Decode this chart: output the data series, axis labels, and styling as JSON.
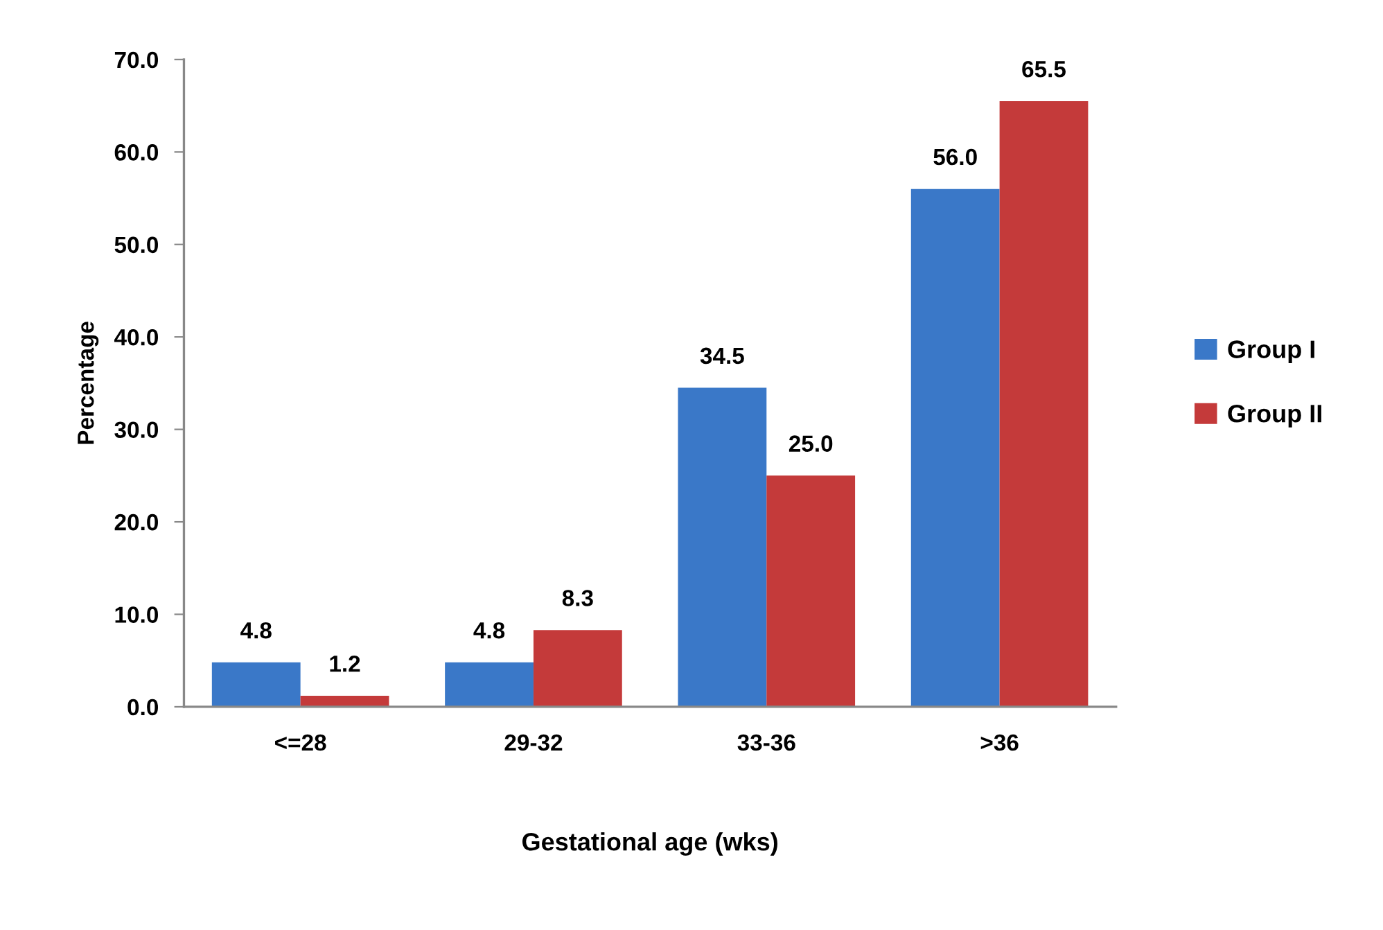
{
  "chart_data": {
    "type": "bar",
    "xlabel": "Gestational age (wks)",
    "ylabel": "Percentage",
    "categories": [
      "<=28",
      "29-32",
      "33-36",
      ">36"
    ],
    "series": [
      {
        "name": "Group I",
        "color": "#3a78c8",
        "values": [
          4.8,
          4.8,
          34.5,
          56.0
        ],
        "value_labels": [
          "4.8",
          "4.8",
          "34.5",
          "56.0"
        ]
      },
      {
        "name": "Group II",
        "color": "#c43a3a",
        "values": [
          1.2,
          8.3,
          25.0,
          65.5
        ],
        "value_labels": [
          "1.2",
          "8.3",
          "25.0",
          "65.5"
        ]
      }
    ],
    "ylim": [
      0,
      70
    ],
    "yticks": [
      {
        "value": 0,
        "label": "0.0"
      },
      {
        "value": 10,
        "label": "10.0"
      },
      {
        "value": 20,
        "label": "20.0"
      },
      {
        "value": 30,
        "label": "30.0"
      },
      {
        "value": 40,
        "label": "40.0"
      },
      {
        "value": 50,
        "label": "50.0"
      },
      {
        "value": 60,
        "label": "60.0"
      },
      {
        "value": 70,
        "label": "70.0"
      }
    ],
    "grid": false,
    "legend": "right"
  }
}
